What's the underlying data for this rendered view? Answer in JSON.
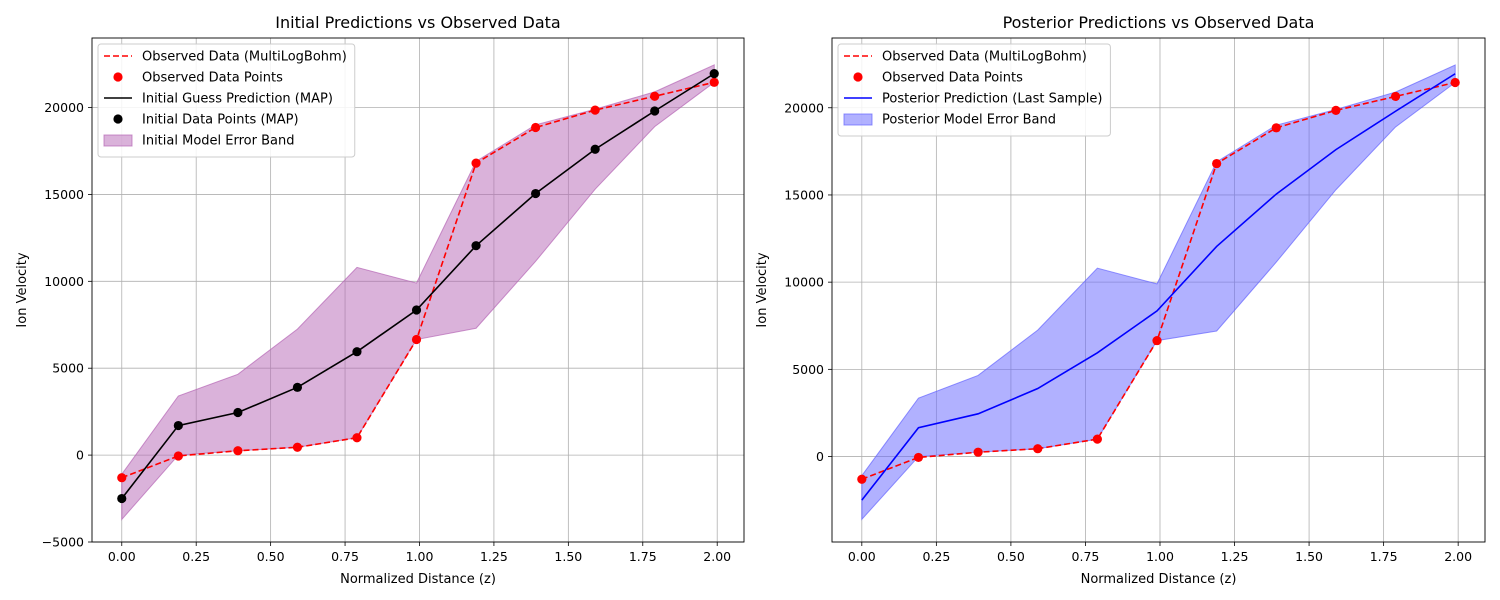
{
  "chart_data": [
    {
      "type": "line",
      "title": "Initial Predictions vs Observed Data",
      "xlabel": "Normalized Distance (z)",
      "ylabel": "Ion Velocity",
      "xlim": [
        -0.1,
        2.09
      ],
      "ylim": [
        -5000,
        24000
      ],
      "xticks": [
        0.0,
        0.25,
        0.5,
        0.75,
        1.0,
        1.25,
        1.5,
        1.75,
        2.0
      ],
      "xtick_labels": [
        "0.00",
        "0.25",
        "0.50",
        "0.75",
        "1.00",
        "1.25",
        "1.50",
        "1.75",
        "2.00"
      ],
      "yticks": [
        -5000,
        0,
        5000,
        10000,
        15000,
        20000
      ],
      "ytick_labels": [
        "−5000",
        "0",
        "5000",
        "10000",
        "15000",
        "20000"
      ],
      "grid": true,
      "legend_position": "top-left",
      "x": [
        0.0,
        0.19,
        0.39,
        0.59,
        0.79,
        0.99,
        1.19,
        1.39,
        1.59,
        1.79,
        1.99
      ],
      "series": [
        {
          "name": "Observed Data (MultiLogBohm)",
          "kind": "dashed-line",
          "color": "#ff0000",
          "values": [
            -1300,
            -50,
            250,
            450,
            1000,
            6650,
            16800,
            18850,
            19850,
            20650,
            21450
          ]
        },
        {
          "name": "Observed Data Points",
          "kind": "scatter",
          "color": "#ff0000",
          "values": [
            -1300,
            -50,
            250,
            450,
            1000,
            6650,
            16800,
            18850,
            19850,
            20650,
            21450
          ]
        },
        {
          "name": "Initial Guess Prediction (MAP)",
          "kind": "line",
          "color": "#000000",
          "values": [
            -2500,
            1700,
            2450,
            3900,
            5950,
            8350,
            12050,
            15050,
            17600,
            19800,
            21950
          ]
        },
        {
          "name": "Initial Data Points (MAP)",
          "kind": "scatter",
          "color": "#000000",
          "values": [
            -2500,
            1700,
            2450,
            3900,
            5950,
            8350,
            12050,
            15050,
            17600,
            19800,
            21950
          ]
        },
        {
          "name": "Initial Model Error Band",
          "kind": "band",
          "color": "#b565b5",
          "upper": [
            -1100,
            3400,
            4650,
            7250,
            10800,
            9900,
            16900,
            19000,
            19900,
            20900,
            22450
          ],
          "lower": [
            -3700,
            0,
            250,
            450,
            1000,
            6650,
            7300,
            11150,
            15300,
            18900,
            21450
          ]
        }
      ]
    },
    {
      "type": "line",
      "title": "Posterior Predictions vs Observed Data",
      "xlabel": "Normalized Distance (z)",
      "ylabel": "Ion Velocity",
      "xlim": [
        -0.1,
        2.09
      ],
      "ylim": [
        -4900,
        24000
      ],
      "xticks": [
        0.0,
        0.25,
        0.5,
        0.75,
        1.0,
        1.25,
        1.5,
        1.75,
        2.0
      ],
      "xtick_labels": [
        "0.00",
        "0.25",
        "0.50",
        "0.75",
        "1.00",
        "1.25",
        "1.50",
        "1.75",
        "2.00"
      ],
      "yticks": [
        0,
        5000,
        10000,
        15000,
        20000
      ],
      "ytick_labels": [
        "0",
        "5000",
        "10000",
        "15000",
        "20000"
      ],
      "grid": true,
      "legend_position": "top-left",
      "x": [
        0.0,
        0.19,
        0.39,
        0.59,
        0.79,
        0.99,
        1.19,
        1.39,
        1.59,
        1.79,
        1.99
      ],
      "series": [
        {
          "name": "Observed Data (MultiLogBohm)",
          "kind": "dashed-line",
          "color": "#ff0000",
          "values": [
            -1300,
            -50,
            250,
            450,
            1000,
            6650,
            16800,
            18850,
            19850,
            20650,
            21450
          ]
        },
        {
          "name": "Observed Data Points",
          "kind": "scatter",
          "color": "#ff0000",
          "values": [
            -1300,
            -50,
            250,
            450,
            1000,
            6650,
            16800,
            18850,
            19850,
            20650,
            21450
          ]
        },
        {
          "name": "Posterior Prediction (Last Sample)",
          "kind": "line",
          "color": "#0000ff",
          "values": [
            -2500,
            1650,
            2450,
            3900,
            5950,
            8350,
            12050,
            15050,
            17600,
            19800,
            21950
          ]
        },
        {
          "name": "Posterior Model Error Band",
          "kind": "band",
          "color": "#6464ff",
          "upper": [
            -1100,
            3350,
            4650,
            7250,
            10800,
            9900,
            16900,
            19000,
            19900,
            20900,
            22450
          ],
          "lower": [
            -3600,
            0,
            250,
            450,
            1000,
            6650,
            7200,
            11150,
            15300,
            18900,
            21450
          ]
        }
      ]
    }
  ]
}
